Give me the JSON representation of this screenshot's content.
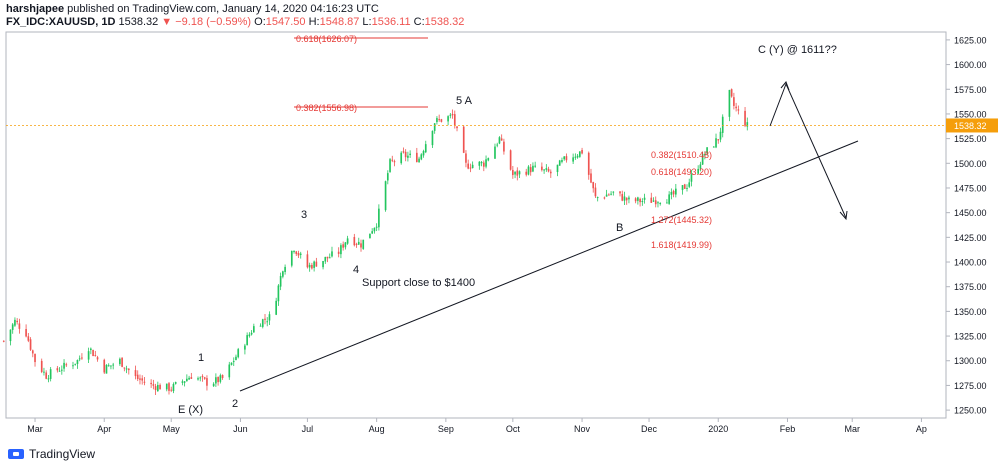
{
  "header": {
    "author": "harshjapee",
    "published_text": "published on TradingView.com, January 14, 2020 04:16:23 UTC",
    "symbol": "FX_IDC:XAUUSD, 1D",
    "last": "1538.32",
    "change": "▼ −9.18 (−0.59%)",
    "o_label": "O:",
    "o_value": "1547.50",
    "h_label": "H:",
    "h_value": "1548.87",
    "l_label": "L:",
    "l_value": "1536.11",
    "c_label": "C:",
    "c_value": "1538.32"
  },
  "footer": {
    "brand": "TradingView"
  },
  "colors": {
    "up": "#26a69a",
    "upBright": "#22c55e",
    "down": "#ef5350",
    "price_line": "#f59e0b",
    "fib": "#e53935"
  },
  "chart_data": {
    "type": "candlestick",
    "x_ticks": [
      "Mar",
      "Apr",
      "May",
      "Jun",
      "Jul",
      "Aug",
      "Sep",
      "Oct",
      "Nov",
      "Dec",
      "2020",
      "Feb",
      "Mar",
      "Ap"
    ],
    "y_ticks": [
      "1625.00",
      "1600.00",
      "1575.00",
      "1550.00",
      "1525.00",
      "1500.00",
      "1475.00",
      "1450.00",
      "1425.00",
      "1400.00",
      "1375.00",
      "1350.00",
      "1325.00",
      "1300.00",
      "1275.00",
      "1250.00"
    ],
    "ylim": [
      1242,
      1633
    ],
    "current_price": "1538.32",
    "close_path": [
      [
        "2019-02-15",
        1320
      ],
      [
        "2019-02-20",
        1340
      ],
      [
        "2019-02-25",
        1328
      ],
      [
        "2019-03-01",
        1300
      ],
      [
        "2019-03-06",
        1285
      ],
      [
        "2019-03-12",
        1292
      ],
      [
        "2019-03-20",
        1300
      ],
      [
        "2019-03-25",
        1314
      ],
      [
        "2019-04-01",
        1292
      ],
      [
        "2019-04-08",
        1300
      ],
      [
        "2019-04-15",
        1283
      ],
      [
        "2019-04-22",
        1275
      ],
      [
        "2019-05-01",
        1272
      ],
      [
        "2019-05-10",
        1285
      ],
      [
        "2019-05-18",
        1277
      ],
      [
        "2019-05-24",
        1282
      ],
      [
        "2019-06-01",
        1312
      ],
      [
        "2019-06-08",
        1338
      ],
      [
        "2019-06-15",
        1345
      ],
      [
        "2019-06-20",
        1395
      ],
      [
        "2019-06-25",
        1415
      ],
      [
        "2019-07-01",
        1395
      ],
      [
        "2019-07-08",
        1402
      ],
      [
        "2019-07-15",
        1410
      ],
      [
        "2019-07-19",
        1425
      ],
      [
        "2019-07-25",
        1418
      ],
      [
        "2019-08-01",
        1440
      ],
      [
        "2019-08-07",
        1500
      ],
      [
        "2019-08-13",
        1508
      ],
      [
        "2019-08-20",
        1505
      ],
      [
        "2019-08-27",
        1542
      ],
      [
        "2019-09-04",
        1548
      ],
      [
        "2019-09-10",
        1498
      ],
      [
        "2019-09-18",
        1500
      ],
      [
        "2019-09-25",
        1525
      ],
      [
        "2019-10-01",
        1488
      ],
      [
        "2019-10-10",
        1495
      ],
      [
        "2019-10-18",
        1490
      ],
      [
        "2019-10-25",
        1505
      ],
      [
        "2019-11-01",
        1512
      ],
      [
        "2019-11-07",
        1465
      ],
      [
        "2019-11-15",
        1470
      ],
      [
        "2019-11-22",
        1462
      ],
      [
        "2019-12-01",
        1462
      ],
      [
        "2019-12-10",
        1465
      ],
      [
        "2019-12-18",
        1478
      ],
      [
        "2019-12-26",
        1510
      ],
      [
        "2020-01-01",
        1525
      ],
      [
        "2020-01-06",
        1570
      ],
      [
        "2020-01-08",
        1558
      ],
      [
        "2020-01-14",
        1538
      ]
    ],
    "annotations": [
      {
        "text": "0.618(1626.07)",
        "color": "red"
      },
      {
        "text": "0.382(1556.98)",
        "color": "red"
      },
      {
        "text": "0.382(1510.48)",
        "color": "red"
      },
      {
        "text": "0.618(1493.20)",
        "color": "red"
      },
      {
        "text": "1.272(1445.32)",
        "color": "red"
      },
      {
        "text": "1.618(1419.99)",
        "color": "red"
      },
      {
        "text": "5 A",
        "color": "black"
      },
      {
        "text": "3",
        "color": "black"
      },
      {
        "text": "4",
        "color": "black"
      },
      {
        "text": "1",
        "color": "black"
      },
      {
        "text": "2",
        "color": "black"
      },
      {
        "text": "E (X)",
        "color": "black"
      },
      {
        "text": "B",
        "color": "black"
      },
      {
        "text": "C (Y) @ 1611??",
        "color": "black"
      },
      {
        "text": "Support close to $1400",
        "color": "black"
      }
    ]
  }
}
